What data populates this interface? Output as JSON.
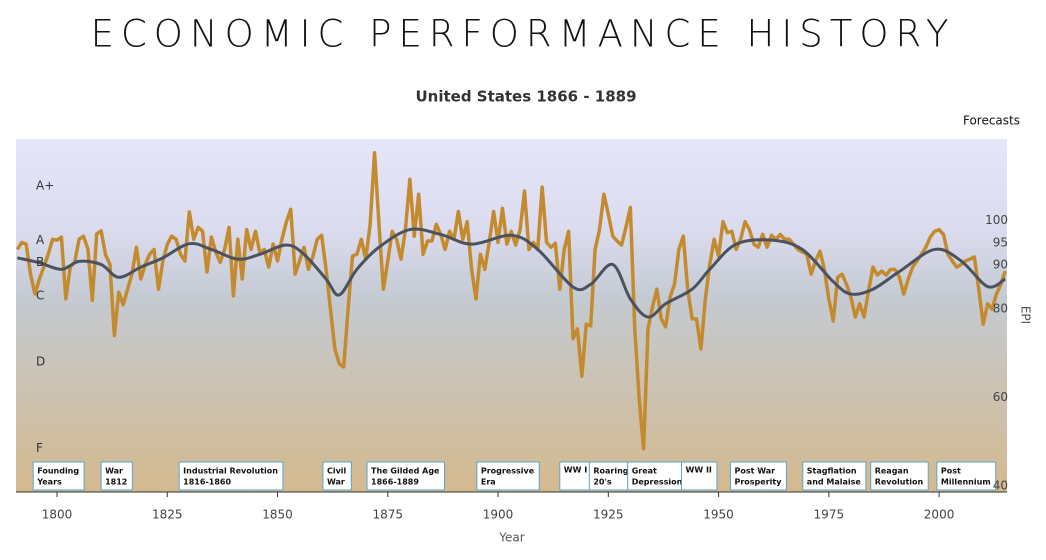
{
  "chart_data": {
    "type": "line",
    "title": "ECONOMIC PERFORMANCE HISTORY",
    "subtitle": "United States 1866 - 1889",
    "forecast_label": "Forecasts",
    "x_label": "Year",
    "y_label": "EPI",
    "xlim": [
      1790.7,
      2015.4
    ],
    "ylim": [
      38.6,
      118.5
    ],
    "xticks": [
      1800,
      1825,
      1850,
      1875,
      1900,
      1925,
      1950,
      1975,
      2000
    ],
    "yticks": [
      40,
      60,
      80,
      90,
      95,
      100
    ],
    "grades": [
      {
        "label": "A+",
        "value": 107.9
      },
      {
        "label": "A",
        "value": 95.5
      },
      {
        "label": "B",
        "value": 90.5
      },
      {
        "label": "C",
        "value": 83
      },
      {
        "label": "D",
        "value": 68
      },
      {
        "label": "F",
        "value": 48.4
      }
    ],
    "eras": [
      {
        "year": 1794.6,
        "lines": [
          "Founding",
          "Years"
        ]
      },
      {
        "year": 1810,
        "lines": [
          "War",
          "1812"
        ]
      },
      {
        "year": 1827.7,
        "lines": [
          "Industrial Revolution",
          "1816-1860"
        ]
      },
      {
        "year": 1860.3,
        "lines": [
          "Civil",
          "War"
        ]
      },
      {
        "year": 1870.3,
        "lines": [
          "The Gilded Age",
          "1866-1889"
        ]
      },
      {
        "year": 1895.2,
        "lines": [
          "Progressive",
          "Era"
        ]
      },
      {
        "year": 1914,
        "lines": [
          "WW I"
        ]
      },
      {
        "year": 1920.7,
        "lines": [
          "Roaring",
          "20's"
        ]
      },
      {
        "year": 1929.4,
        "lines": [
          "Great",
          "Depression"
        ]
      },
      {
        "year": 1941.6,
        "lines": [
          "WW II"
        ]
      },
      {
        "year": 1952.7,
        "lines": [
          "Post War",
          "Prosperity"
        ]
      },
      {
        "year": 1969.1,
        "lines": [
          "Stagflation",
          "and Malaise"
        ]
      },
      {
        "year": 1984.5,
        "lines": [
          "Reagan",
          "Revolution"
        ]
      },
      {
        "year": 1999.5,
        "lines": [
          "Post",
          "Millennium"
        ]
      }
    ],
    "series": [
      {
        "color": "#c48a2e",
        "smooth": false,
        "x": [
          1791,
          1792,
          1793,
          1794,
          1795,
          1796,
          1797,
          1798,
          1799,
          1800,
          1801,
          1802,
          1803,
          1804,
          1805,
          1806,
          1807,
          1808,
          1809,
          1810,
          1811,
          1812,
          1813,
          1814,
          1815,
          1816,
          1817,
          1818,
          1819,
          1820,
          1821,
          1822,
          1823,
          1824,
          1825,
          1826,
          1827,
          1828,
          1829,
          1830,
          1831,
          1832,
          1833,
          1834,
          1835,
          1836,
          1837,
          1838,
          1839,
          1840,
          1841,
          1842,
          1843,
          1844,
          1845,
          1846,
          1847,
          1848,
          1849,
          1850,
          1851,
          1852,
          1853,
          1854,
          1855,
          1856,
          1857,
          1858,
          1859,
          1860,
          1861,
          1862,
          1863,
          1864,
          1865,
          1866,
          1867,
          1868,
          1869,
          1870,
          1871,
          1872,
          1873,
          1874,
          1875,
          1876,
          1877,
          1878,
          1879,
          1880,
          1881,
          1882,
          1883,
          1884,
          1885,
          1886,
          1887,
          1888,
          1889,
          1890,
          1891,
          1892,
          1893,
          1894,
          1895,
          1896,
          1897,
          1898,
          1899,
          1900,
          1901,
          1902,
          1903,
          1904,
          1905,
          1906,
          1907,
          1908,
          1909,
          1910,
          1911,
          1912,
          1913,
          1914,
          1915,
          1916,
          1917,
          1918,
          1919,
          1920,
          1921,
          1922,
          1923,
          1924,
          1925,
          1926,
          1927,
          1928,
          1929,
          1930,
          1931,
          1932,
          1933,
          1934,
          1935,
          1936,
          1937,
          1938,
          1939,
          1940,
          1941,
          1942,
          1943,
          1944,
          1945,
          1946,
          1947,
          1948,
          1949,
          1950,
          1951,
          1952,
          1953,
          1954,
          1955,
          1956,
          1957,
          1958,
          1959,
          1960,
          1961,
          1962,
          1963,
          1964,
          1965,
          1966,
          1967,
          1968,
          1969,
          1970,
          1971,
          1972,
          1973,
          1974,
          1975,
          1976,
          1977,
          1978,
          1979,
          1980,
          1981,
          1982,
          1983,
          1984,
          1985,
          1986,
          1987,
          1988,
          1989,
          1990,
          1991,
          1992,
          1993,
          1994,
          1995,
          1996,
          1997,
          1998,
          1999,
          2000,
          2001,
          2002,
          2003,
          2004,
          2005,
          2006,
          2007,
          2008,
          2009,
          2010,
          2011,
          2012,
          2013,
          2014,
          2015
        ],
        "values": [
          93.5,
          95.1,
          94.7,
          87.9,
          83.4,
          86.8,
          89.5,
          92.4,
          95.8,
          95.6,
          96.3,
          82.3,
          89.5,
          90.6,
          95.8,
          96.5,
          93.6,
          82,
          97,
          97.7,
          92.3,
          90.1,
          74,
          83.8,
          81,
          84.5,
          87.9,
          94,
          86.8,
          90.1,
          92.4,
          93.5,
          84.5,
          90.9,
          94.6,
          96.5,
          95.8,
          92.4,
          90.9,
          102,
          95.8,
          98.5,
          97.6,
          88.4,
          96.3,
          92.9,
          90.6,
          93.5,
          98.5,
          83,
          95.8,
          86.8,
          98,
          93.5,
          97.6,
          92.7,
          93.5,
          89.5,
          94.7,
          90.9,
          95.8,
          99.7,
          102.6,
          87.9,
          90.9,
          94,
          89,
          91.8,
          95.8,
          96.7,
          89,
          80,
          71,
          67.6,
          66.9,
          80,
          92,
          92.4,
          95.8,
          91.3,
          99.2,
          115.4,
          99.2,
          84.5,
          90.9,
          97.6,
          95.8,
          91.3,
          98,
          109.4,
          96.5,
          106,
          92.4,
          95.4,
          95.4,
          99.2,
          96.9,
          93.5,
          97.6,
          95.8,
          102.1,
          95.8,
          99.8,
          89,
          82.3,
          92.4,
          89,
          95.1,
          102.1,
          95.1,
          102.8,
          94.7,
          97.6,
          94.5,
          98,
          106.7,
          93.5,
          95.1,
          93.5,
          107.6,
          95.1,
          94,
          94.9,
          84.5,
          93.5,
          97.6,
          73.3,
          75.5,
          64.8,
          76.6,
          76.2,
          93.5,
          98,
          106,
          101.5,
          96.5,
          95.4,
          94.5,
          98.5,
          103,
          75.5,
          59.7,
          48.4,
          75.5,
          80.4,
          84.5,
          77.8,
          76,
          82.7,
          85.6,
          93.5,
          96.5,
          84.5,
          77.8,
          77.8,
          71,
          82.3,
          90.1,
          95.8,
          92,
          99.8,
          97.3,
          97.6,
          93.5,
          95.8,
          99.8,
          98,
          94.7,
          94,
          96.9,
          94,
          96.7,
          95.8,
          96.9,
          95.8,
          95.8,
          94.7,
          93.5,
          92.9,
          92.4,
          87.9,
          90.9,
          93.1,
          89,
          82.3,
          77.3,
          87.2,
          87.9,
          85.6,
          82.7,
          78.2,
          81.2,
          78.2,
          84.1,
          89.5,
          87.7,
          88.6,
          87.7,
          89,
          89,
          87.2,
          83.4,
          86.8,
          89.5,
          90.9,
          92.4,
          94,
          96.3,
          97.6,
          98,
          96.9,
          92.4,
          90.9,
          89.5,
          90.1,
          90.9,
          91.3,
          91.8,
          84.5,
          76.6,
          81.2,
          80,
          83.4,
          85.6,
          88.6
        ]
      },
      {
        "color": "#4a5260",
        "smooth": true,
        "x": [
          1791,
          1796,
          1801,
          1805,
          1810,
          1814,
          1819,
          1824,
          1830,
          1835,
          1841,
          1846,
          1852,
          1856,
          1861,
          1864,
          1868,
          1873,
          1880,
          1887,
          1894,
          1903,
          1909,
          1917,
          1921,
          1926,
          1930,
          1934,
          1938,
          1944,
          1948,
          1954,
          1962,
          1969,
          1976,
          1980,
          1985,
          1991,
          1999,
          2005,
          2011,
          2015
        ],
        "values": [
          91.6,
          90.5,
          89,
          90.8,
          90.1,
          87.2,
          89.5,
          91.6,
          94.8,
          93.5,
          91.3,
          92.4,
          94.5,
          92.4,
          86.8,
          83.2,
          89,
          94,
          98,
          96.9,
          94.7,
          96.7,
          93.5,
          85,
          85.6,
          90.1,
          82.3,
          78.2,
          81.2,
          84.5,
          89,
          94.7,
          95.6,
          93.5,
          86.2,
          83.4,
          84.5,
          88.5,
          93.5,
          90.9,
          85.1,
          86.8
        ]
      }
    ]
  }
}
